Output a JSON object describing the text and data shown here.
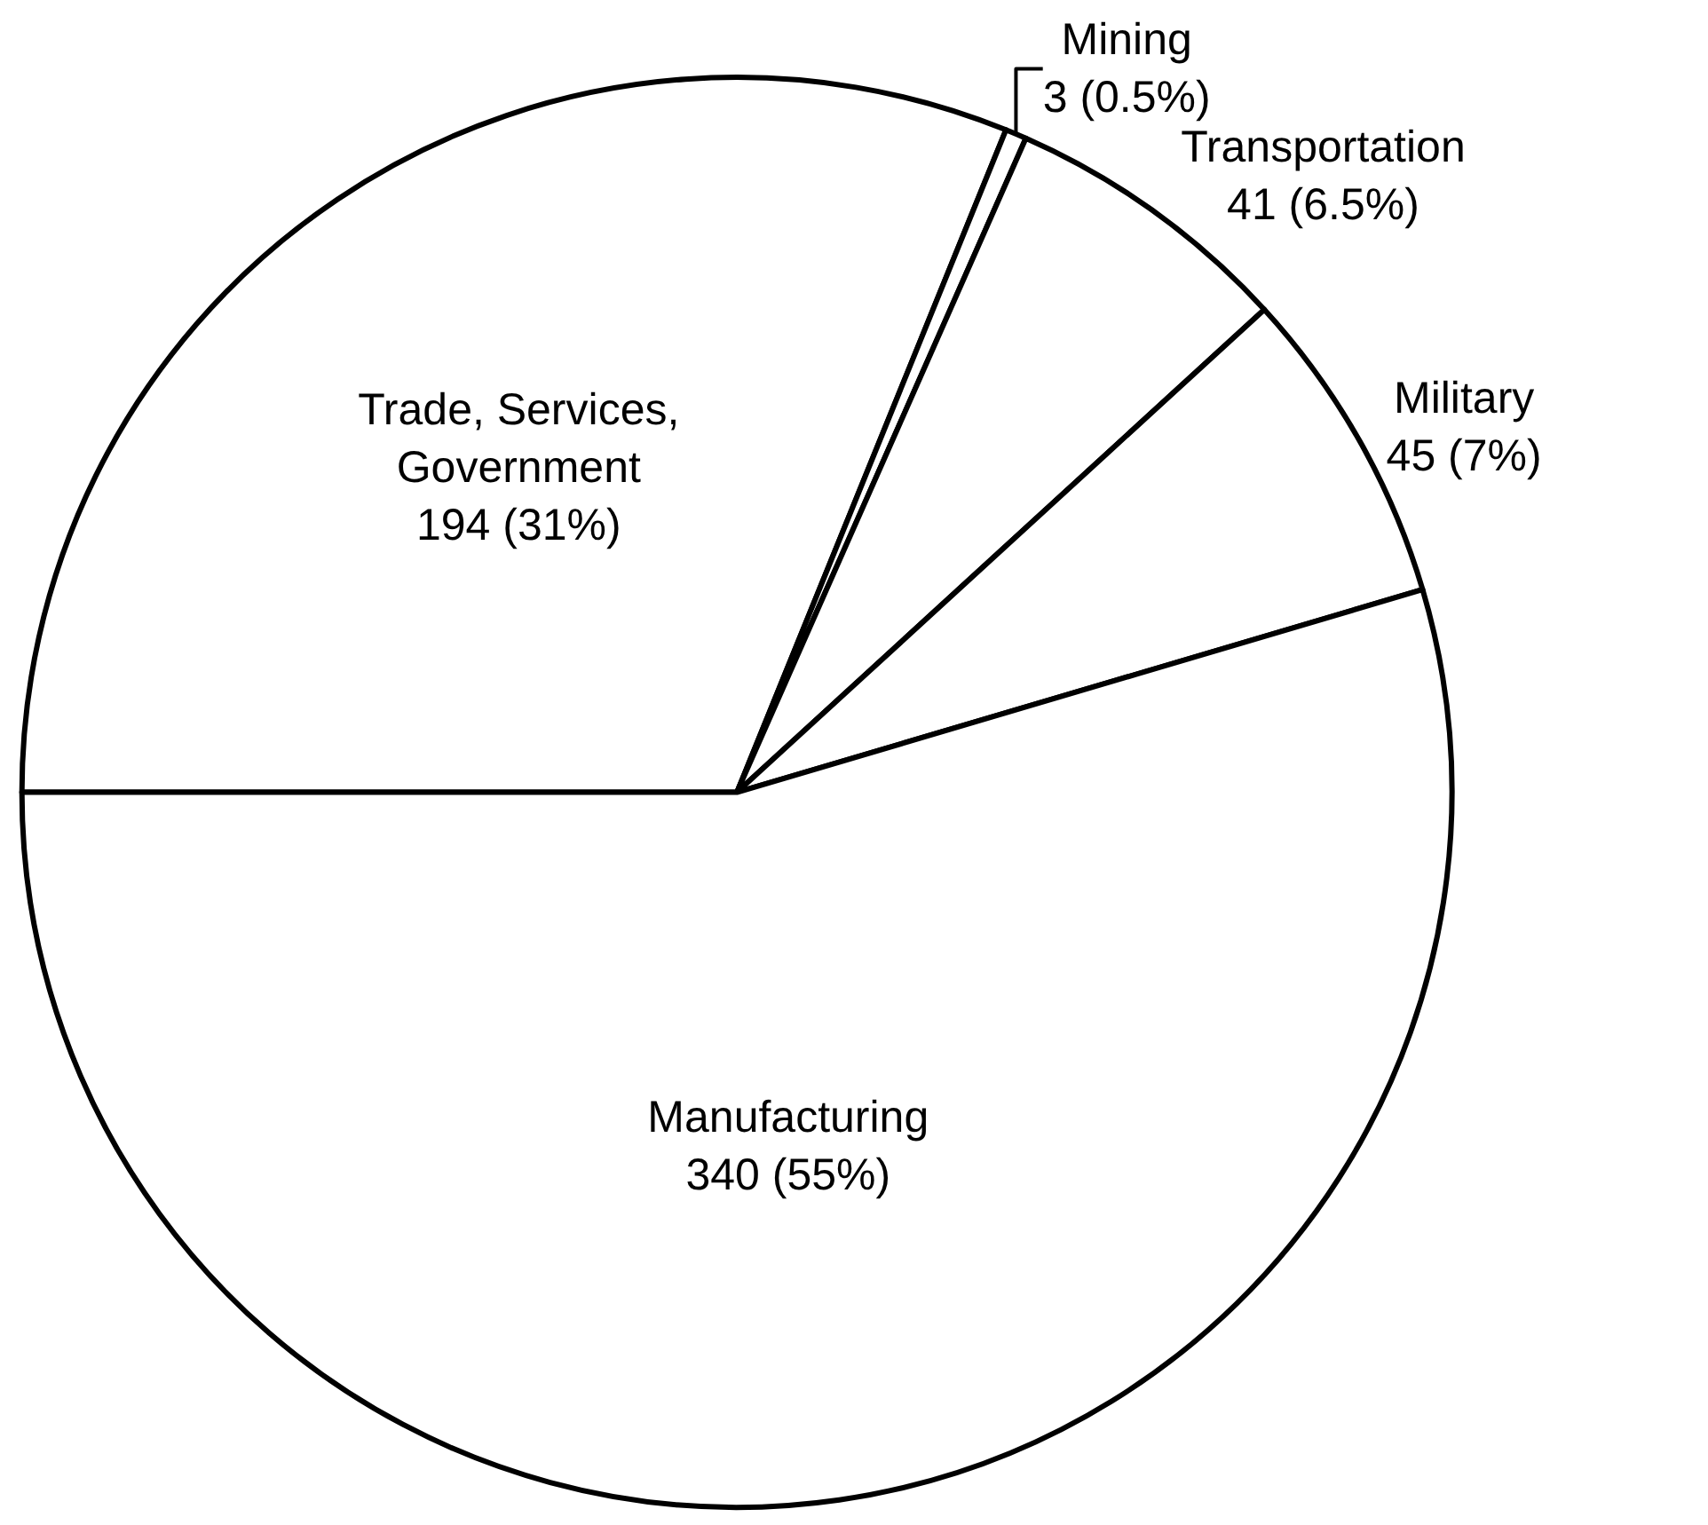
{
  "chart_data": {
    "type": "pie",
    "categories": [
      "Trade, Services,\nGovernment",
      "Mining",
      "Transportation",
      "Military",
      "Manufacturing"
    ],
    "values": [
      194,
      3,
      41,
      45,
      340
    ],
    "value_labels": [
      "194 (31%)",
      "3 (0.5%)",
      "41 (6.5%)",
      "45 (7%)",
      "340 (55%)"
    ],
    "colors": [
      "#ffffff",
      "#ffffff",
      "#ffffff",
      "#ffffff",
      "#ffffff"
    ],
    "legend": false
  }
}
